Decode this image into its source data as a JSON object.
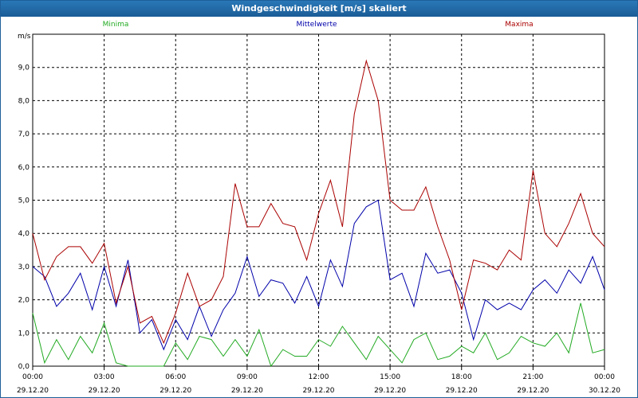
{
  "window": {
    "title": "Windgeschwindigkeit [m/s] skaliert"
  },
  "chart_data": {
    "type": "line",
    "title": "Windgeschwindigkeit [m/s] skaliert",
    "ylabel": "m/s",
    "ylim": [
      0,
      10
    ],
    "xlim": [
      "29.12.20 00:00",
      "30.12.20 00:00"
    ],
    "grid": true,
    "legend_placement": "top",
    "y_ticks": [
      "0,0",
      "1,0",
      "2,0",
      "3,0",
      "4,0",
      "5,0",
      "6,0",
      "7,0",
      "8,0",
      "9,0"
    ],
    "x_ticks": [
      {
        "time": "00:00",
        "date": "29.12.20"
      },
      {
        "time": "03:00",
        "date": "29.12.20"
      },
      {
        "time": "06:00",
        "date": "29.12.20"
      },
      {
        "time": "09:00",
        "date": "29.12.20"
      },
      {
        "time": "12:00",
        "date": "29.12.20"
      },
      {
        "time": "15:00",
        "date": "29.12.20"
      },
      {
        "time": "18:00",
        "date": "29.12.20"
      },
      {
        "time": "21:00",
        "date": "29.12.20"
      },
      {
        "time": "00:00",
        "date": "30.12.20"
      }
    ],
    "x_hours": [
      0,
      0.5,
      1,
      1.5,
      2,
      2.5,
      3,
      3.5,
      4,
      4.5,
      5,
      5.5,
      6,
      6.5,
      7,
      7.5,
      8,
      8.5,
      9,
      9.5,
      10,
      10.5,
      11,
      11.5,
      12,
      12.5,
      13,
      13.5,
      14,
      14.5,
      15,
      15.5,
      16,
      16.5,
      17,
      17.5,
      18,
      18.5,
      19,
      19.5,
      20,
      20.5,
      21,
      21.5,
      22,
      22.5,
      23,
      23.5,
      24
    ],
    "series": [
      {
        "name": "Minima",
        "color": "#22aa22",
        "values": [
          1.6,
          0.1,
          0.8,
          0.2,
          0.9,
          0.4,
          1.3,
          0.1,
          0.0,
          0.0,
          0.0,
          0.0,
          0.7,
          0.2,
          0.9,
          0.8,
          0.3,
          0.8,
          0.3,
          1.1,
          0.0,
          0.5,
          0.3,
          0.3,
          0.8,
          0.6,
          1.2,
          0.7,
          0.2,
          0.9,
          0.5,
          0.1,
          0.8,
          1.0,
          0.2,
          0.3,
          0.6,
          0.4,
          1.0,
          0.2,
          0.4,
          0.9,
          0.7,
          0.6,
          1.0,
          0.4,
          1.9,
          0.4,
          0.5
        ]
      },
      {
        "name": "Mittelwerte",
        "color": "#0000aa",
        "values": [
          3.0,
          2.7,
          1.8,
          2.2,
          2.8,
          1.7,
          3.0,
          1.8,
          3.2,
          1.0,
          1.4,
          0.5,
          1.4,
          0.8,
          1.8,
          0.9,
          1.7,
          2.2,
          3.3,
          2.1,
          2.6,
          2.5,
          1.9,
          2.7,
          1.8,
          3.2,
          2.4,
          4.3,
          4.8,
          5.0,
          2.6,
          2.8,
          1.8,
          3.4,
          2.8,
          2.9,
          2.2,
          0.8,
          2.0,
          1.7,
          1.9,
          1.7,
          2.3,
          2.6,
          2.2,
          2.9,
          2.5,
          3.3,
          2.3
        ]
      },
      {
        "name": "Maxima",
        "color": "#aa0000",
        "values": [
          4.0,
          2.6,
          3.3,
          3.6,
          3.6,
          3.1,
          3.7,
          1.9,
          3.0,
          1.3,
          1.5,
          0.7,
          1.6,
          2.8,
          1.8,
          2.0,
          2.7,
          5.5,
          4.2,
          4.2,
          4.9,
          4.3,
          4.2,
          3.2,
          4.6,
          5.6,
          4.2,
          7.6,
          9.2,
          8.0,
          5.0,
          4.7,
          4.7,
          5.4,
          4.2,
          3.2,
          1.7,
          3.2,
          3.1,
          2.9,
          3.5,
          3.2,
          5.9,
          4.0,
          3.6,
          4.3,
          5.2,
          4.0,
          3.6
        ]
      }
    ]
  }
}
